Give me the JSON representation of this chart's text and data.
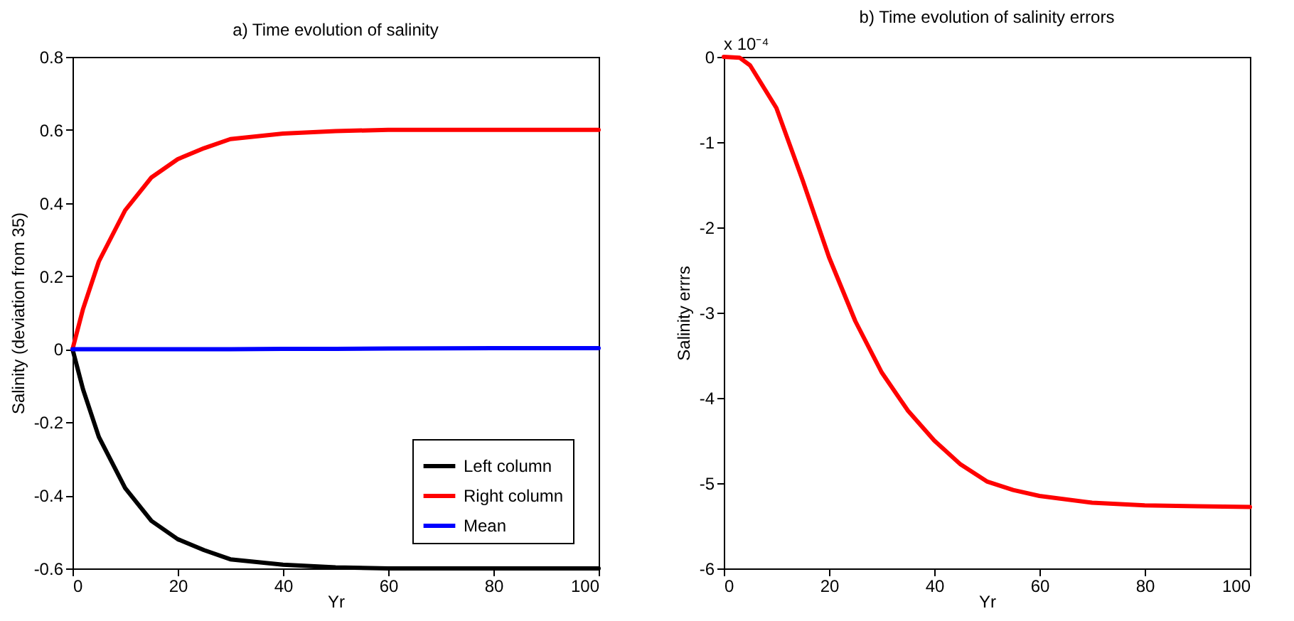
{
  "chart_data": [
    {
      "type": "line",
      "title": "a) Time evolution of salinity",
      "xlabel": "Yr",
      "ylabel": "Salinity (deviation from 35)",
      "x": [
        0,
        2,
        5,
        10,
        15,
        20,
        25,
        30,
        40,
        50,
        60,
        80,
        100
      ],
      "series": [
        {
          "name": "Left column",
          "color": "#000000",
          "values": [
            0,
            -0.11,
            -0.24,
            -0.38,
            -0.47,
            -0.52,
            -0.55,
            -0.575,
            -0.59,
            -0.597,
            -0.6,
            -0.6,
            -0.6
          ]
        },
        {
          "name": "Right column",
          "color": "#ff0000",
          "values": [
            0,
            0.11,
            0.24,
            0.38,
            0.47,
            0.52,
            0.55,
            0.575,
            0.59,
            0.597,
            0.6,
            0.6,
            0.6
          ]
        },
        {
          "name": "Mean",
          "color": "#0000ff",
          "values": [
            0,
            0,
            0,
            0,
            0,
            0,
            0,
            0,
            0.001,
            0.001,
            0.002,
            0.003,
            0.003
          ]
        }
      ],
      "xlim": [
        0,
        100
      ],
      "xticks": [
        0,
        20,
        40,
        60,
        80,
        100
      ],
      "ylim": [
        -0.6,
        0.8
      ],
      "yticks": [
        -0.6,
        -0.4,
        -0.2,
        0,
        0.2,
        0.4,
        0.6,
        0.8
      ],
      "legend": "bottom right",
      "grid": false
    },
    {
      "type": "line",
      "title": "b) Time evolution of salinity errors",
      "xlabel": "Yr",
      "ylabel": "Salinity errrs",
      "annotations": [
        "x 10⁻⁴"
      ],
      "x": [
        0,
        3,
        5,
        10,
        15,
        20,
        25,
        30,
        35,
        40,
        45,
        50,
        55,
        60,
        70,
        80,
        90,
        100
      ],
      "series": [
        {
          "color": "#ff0000",
          "values": [
            0,
            -0.01,
            -0.1,
            -0.6,
            -1.45,
            -2.35,
            -3.1,
            -3.7,
            -4.15,
            -4.5,
            -4.78,
            -4.98,
            -5.08,
            -5.15,
            -5.23,
            -5.26,
            -5.27,
            -5.28
          ]
        }
      ],
      "xlim": [
        0,
        100
      ],
      "xticks": [
        0,
        20,
        40,
        60,
        80,
        100
      ],
      "ylim": [
        -6,
        0
      ],
      "yticks": [
        -6,
        -5,
        -4,
        -3,
        -2,
        -1,
        0
      ],
      "legend": false,
      "grid": false
    }
  ]
}
